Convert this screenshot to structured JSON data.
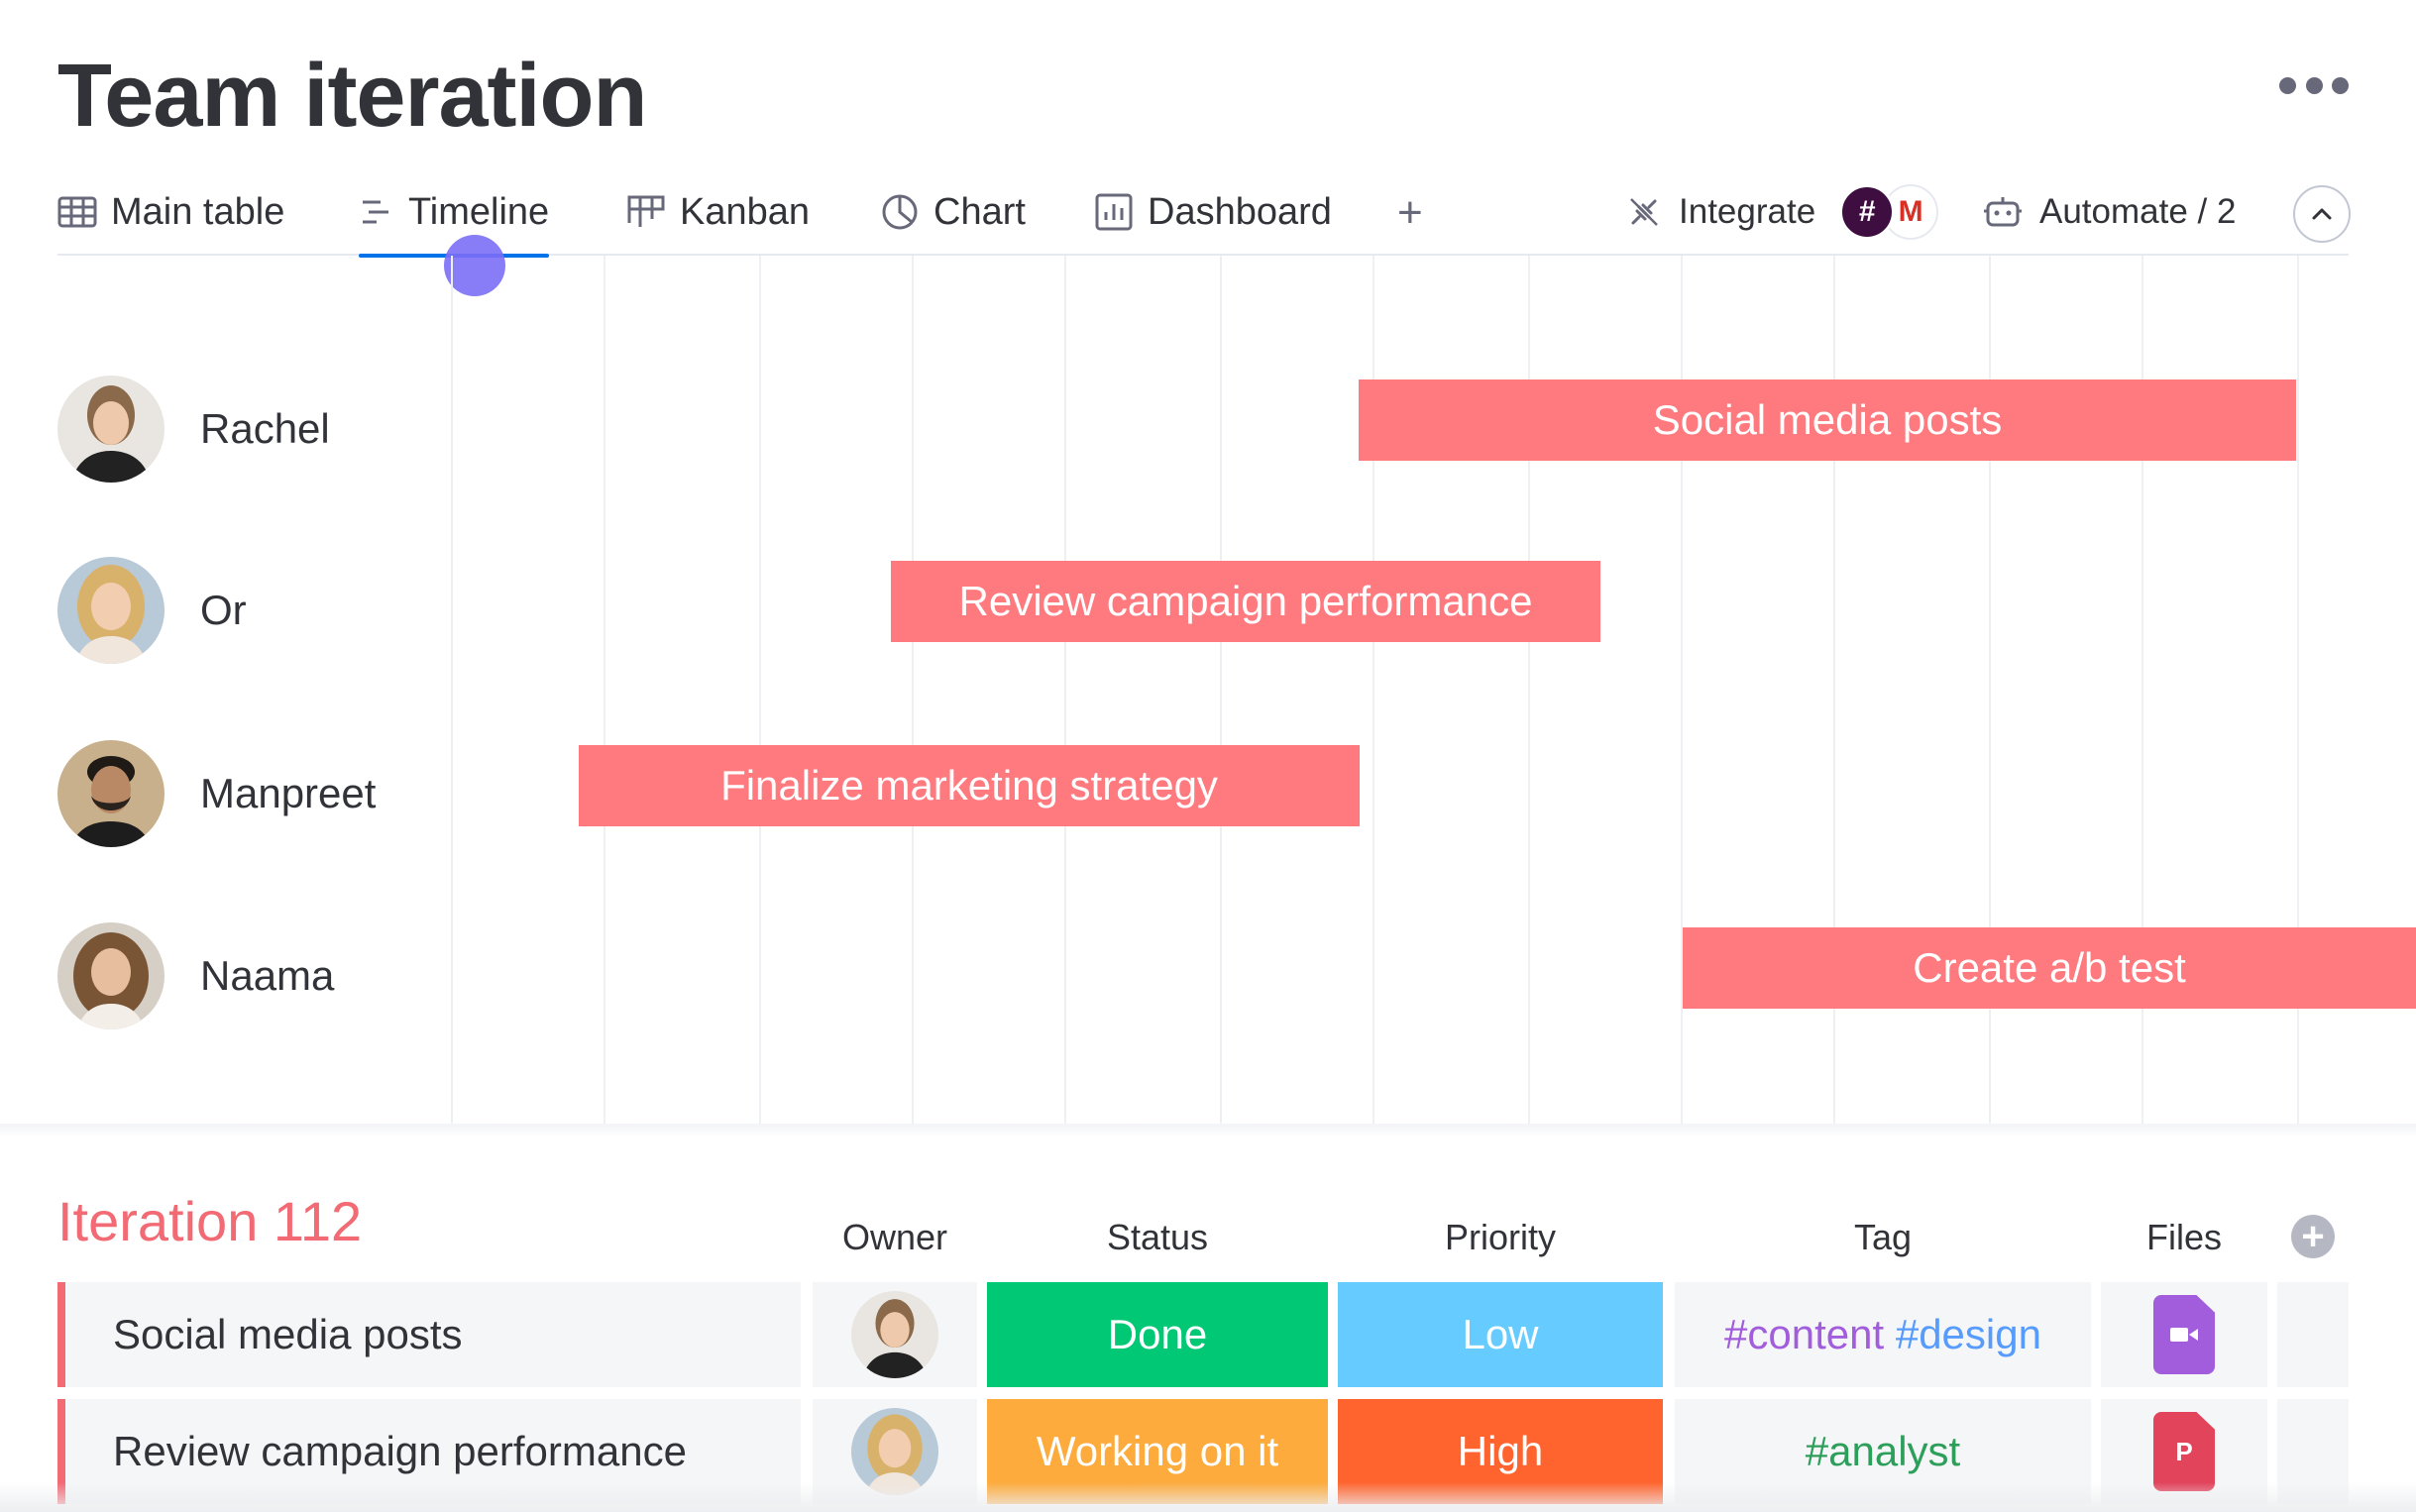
{
  "board": {
    "title": "Team iteration"
  },
  "tabs": [
    {
      "label": "Main table",
      "icon": "table-icon",
      "active": false
    },
    {
      "label": "Timeline",
      "icon": "timeline-icon",
      "active": true
    },
    {
      "label": "Kanban",
      "icon": "kanban-icon",
      "active": false
    },
    {
      "label": "Chart",
      "icon": "chart-icon",
      "active": false
    },
    {
      "label": "Dashboard",
      "icon": "dashboard-icon",
      "active": false
    }
  ],
  "add_view": "+",
  "toolbar": {
    "integrate_label": "Integrate",
    "integration_icons": [
      "slack-icon",
      "gmail-icon"
    ],
    "automate_label": "Automate / 2"
  },
  "timeline": {
    "people": [
      {
        "name": "Rachel",
        "task": "Social media posts"
      },
      {
        "name": "Or",
        "task": "Review campaign performance"
      },
      {
        "name": "Manpreet",
        "task": "Finalize marketing strategy"
      },
      {
        "name": "Naama",
        "task": "Create a/b test"
      }
    ],
    "bar_color": "#ff7a7f"
  },
  "group": {
    "title": "Iteration 112",
    "color": "#f26a74",
    "columns": [
      "Owner",
      "Status",
      "Priority",
      "Tag",
      "Files"
    ],
    "rows": [
      {
        "name": "Social media posts",
        "owner": "Rachel",
        "status": {
          "label": "Done",
          "color": "#00c875"
        },
        "priority": {
          "label": "Low",
          "color": "#66ccff"
        },
        "tags": [
          "#content",
          "#design"
        ],
        "file": {
          "type": "video-file-icon",
          "color": "#a25ddc"
        }
      },
      {
        "name": "Review campaign performance",
        "owner": "Or",
        "status": {
          "label": "Working on it",
          "color": "#fdab3d"
        },
        "priority": {
          "label": "High",
          "color": "#ff642e"
        },
        "tags": [
          "#analyst"
        ],
        "file": {
          "type": "powerpoint-file-icon",
          "color": "#e2445c",
          "letter": "P"
        }
      }
    ]
  }
}
